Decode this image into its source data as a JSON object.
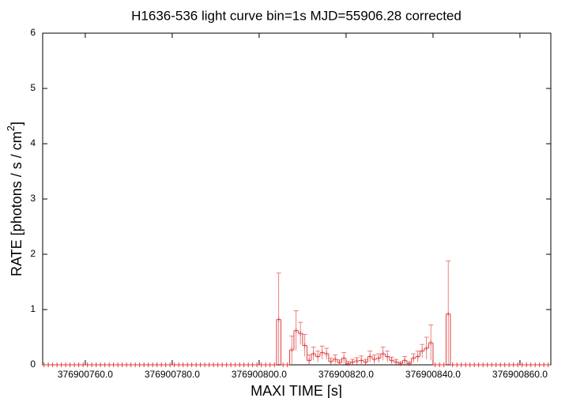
{
  "chart_data": {
    "type": "step",
    "title": "H1636-536 light curve bin=1s MJD=55906.28 corrected",
    "xlabel": "MAXI TIME [s]",
    "ylabel": "RATE [photons / s / cm",
    "ylabel_sup": "2",
    "ylabel_end": "]",
    "color": "#e03c3c",
    "xlim": [
      376900750.2,
      376900867.1
    ],
    "ylim": [
      0,
      6
    ],
    "xticks": [
      {
        "value": 376900760,
        "label": "376900760.0"
      },
      {
        "value": 376900780,
        "label": "376900780.0"
      },
      {
        "value": 376900800,
        "label": "376900800.0"
      },
      {
        "value": 376900820,
        "label": "376900820.0"
      },
      {
        "value": 376900840,
        "label": "376900840.0"
      },
      {
        "value": 376900860,
        "label": "376900860.0"
      }
    ],
    "yticks": [
      0,
      1,
      2,
      3,
      4,
      5,
      6
    ],
    "x": [
      376900750.5,
      376900751.5,
      376900752.5,
      376900753.5,
      376900754.5,
      376900755.5,
      376900756.5,
      376900757.5,
      376900758.5,
      376900759.5,
      376900760.5,
      376900761.5,
      376900762.5,
      376900763.5,
      376900764.5,
      376900765.5,
      376900766.5,
      376900767.5,
      376900768.5,
      376900769.5,
      376900770.5,
      376900771.5,
      376900772.5,
      376900773.5,
      376900774.5,
      376900775.5,
      376900776.5,
      376900777.5,
      376900778.5,
      376900779.5,
      376900780.5,
      376900781.5,
      376900782.5,
      376900783.5,
      376900784.5,
      376900785.5,
      376900786.5,
      376900787.5,
      376900788.5,
      376900789.5,
      376900790.5,
      376900791.5,
      376900792.5,
      376900793.5,
      376900794.5,
      376900795.5,
      376900796.5,
      376900797.5,
      376900798.5,
      376900799.5,
      376900800.5,
      376900801.5,
      376900802.5,
      376900803.5,
      376900804.5,
      376900805.5,
      376900806.5,
      376900807.5,
      376900808.5,
      376900809.5,
      376900810.5,
      376900811.5,
      376900812.5,
      376900813.5,
      376900814.5,
      376900815.5,
      376900816.5,
      376900817.5,
      376900818.5,
      376900819.5,
      376900820.5,
      376900821.5,
      376900822.5,
      376900823.5,
      376900824.5,
      376900825.5,
      376900826.5,
      376900827.5,
      376900828.5,
      376900829.5,
      376900830.5,
      376900831.5,
      376900832.5,
      376900833.5,
      376900834.5,
      376900835.5,
      376900836.5,
      376900837.5,
      376900838.5,
      376900839.5,
      376900840.5,
      376900841.5,
      376900842.5,
      376900843.5,
      376900844.5,
      376900845.5,
      376900846.5,
      376900847.5,
      376900848.5,
      376900849.5,
      376900850.5,
      376900851.5,
      376900852.5,
      376900853.5,
      376900854.5,
      376900855.5,
      376900856.5,
      376900857.5,
      376900858.5,
      376900859.5,
      376900860.5,
      376900861.5,
      376900862.5,
      376900863.5,
      376900864.5,
      376900865.5,
      376900866.5
    ],
    "values": [
      0,
      0,
      0,
      0,
      0,
      0,
      0,
      0,
      0,
      0,
      0,
      0,
      0,
      0,
      0,
      0,
      0,
      0,
      0,
      0,
      0,
      0,
      0,
      0,
      0,
      0,
      0,
      0,
      0,
      0,
      0,
      0,
      0,
      0,
      0,
      0,
      0,
      0,
      0,
      0,
      0,
      0,
      0,
      0,
      0,
      0,
      0,
      0,
      0,
      0,
      0,
      0,
      0,
      0,
      0.82,
      0,
      0,
      0.27,
      0.62,
      0.57,
      0.35,
      0.08,
      0.2,
      0.15,
      0.22,
      0.2,
      0.06,
      0.1,
      0.04,
      0.12,
      0.02,
      0.05,
      0.07,
      0.08,
      0.05,
      0.15,
      0.1,
      0.12,
      0.2,
      0.15,
      0.08,
      0.05,
      0.02,
      0.08,
      0.02,
      0.12,
      0.15,
      0.25,
      0.3,
      0.4,
      0,
      0,
      0,
      0.92,
      0,
      0,
      0,
      0,
      0,
      0,
      0,
      0,
      0,
      0,
      0,
      0,
      0,
      0,
      0,
      0,
      0,
      0,
      0,
      0,
      0,
      0,
      0
    ],
    "errors": [
      0,
      0,
      0,
      0,
      0,
      0,
      0,
      0,
      0,
      0,
      0,
      0,
      0,
      0,
      0,
      0,
      0,
      0,
      0,
      0,
      0,
      0,
      0,
      0,
      0,
      0,
      0,
      0,
      0,
      0,
      0,
      0,
      0,
      0,
      0,
      0,
      0,
      0,
      0,
      0,
      0,
      0,
      0,
      0,
      0,
      0,
      0,
      0,
      0,
      0,
      0,
      0,
      0,
      0,
      0.84,
      0,
      0,
      0.25,
      0.36,
      0.2,
      0.2,
      0.1,
      0.12,
      0.1,
      0.12,
      0.1,
      0.06,
      0.08,
      0.05,
      0.1,
      0.04,
      0.05,
      0.06,
      0.08,
      0.05,
      0.1,
      0.08,
      0.08,
      0.12,
      0.1,
      0.06,
      0.05,
      0.03,
      0.07,
      0.03,
      0.08,
      0.1,
      0.12,
      0.2,
      0.32,
      0,
      0,
      0,
      0.96,
      0,
      0,
      0,
      0,
      0,
      0,
      0,
      0,
      0,
      0,
      0,
      0,
      0,
      0,
      0,
      0,
      0,
      0,
      0,
      0,
      0,
      0,
      0
    ]
  }
}
